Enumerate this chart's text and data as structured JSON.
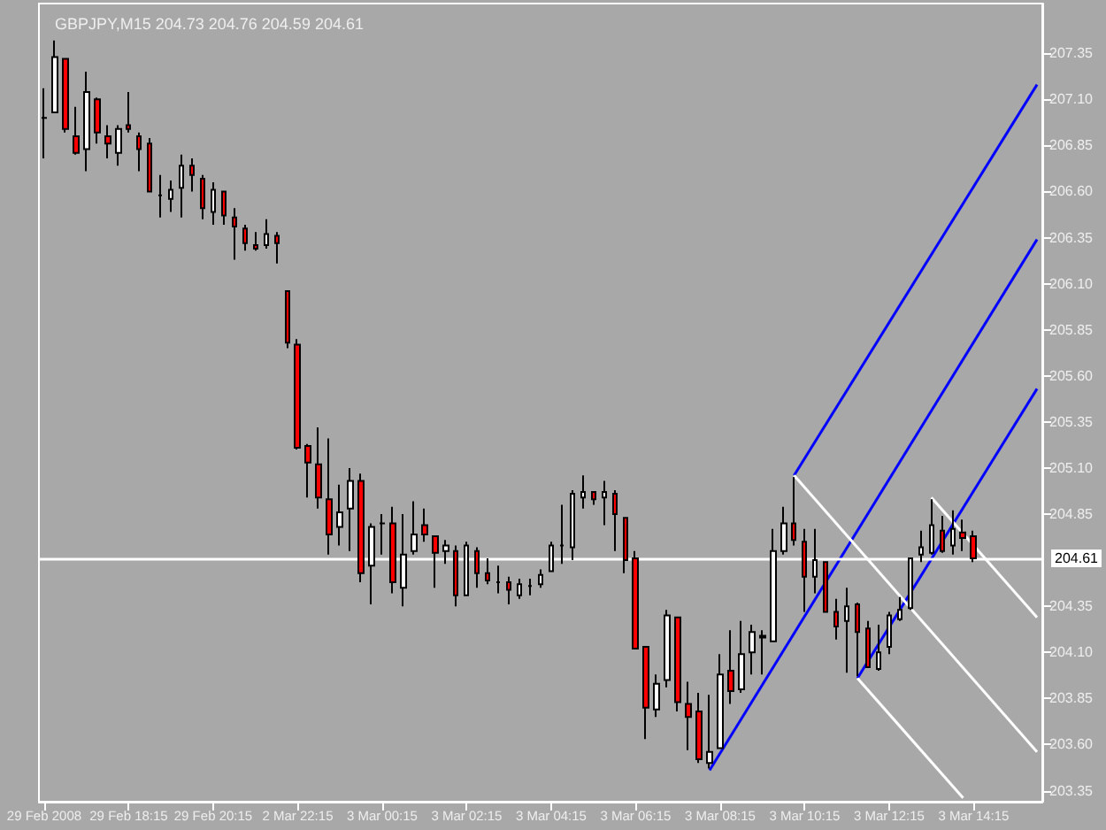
{
  "chart_data": {
    "type": "candlestick",
    "title": "GBPJPY,M15 204.73 204.76 204.59 204.61",
    "categories": [
      "29 Feb 2008",
      null,
      null,
      null,
      null,
      null,
      null,
      null,
      "29 Feb 18:15",
      null,
      null,
      null,
      null,
      null,
      null,
      null,
      "29 Feb 20:15",
      null,
      null,
      null,
      null,
      null,
      null,
      null,
      "2 Mar 22:15",
      null,
      null,
      null,
      null,
      null,
      null,
      null,
      "3 Mar 00:15",
      null,
      null,
      null,
      null,
      null,
      null,
      null,
      "3 Mar 02:15",
      null,
      null,
      null,
      null,
      null,
      null,
      null,
      "3 Mar 04:15",
      null,
      null,
      null,
      null,
      null,
      null,
      null,
      "3 Mar 06:15",
      null,
      null,
      null,
      null,
      null,
      null,
      null,
      "3 Mar 08:15",
      null,
      null,
      null,
      null,
      null,
      null,
      null,
      "3 Mar 10:15",
      null,
      null,
      null,
      null,
      null,
      null,
      null,
      "3 Mar 12:15",
      null,
      null,
      null,
      null,
      null,
      null,
      null,
      "3 Mar 14:15",
      null,
      null,
      null,
      null,
      null,
      null
    ],
    "ylim": [
      203.29,
      207.62
    ],
    "yticks": [
      203.35,
      {
        "value": 203.6,
        "label": "203.60"
      },
      203.85,
      {
        "value": 204.1,
        "label": "204.10"
      },
      204.35,
      204.85,
      {
        "value": 205.1,
        "label": "205.10"
      },
      205.35,
      {
        "value": 205.6,
        "label": "205.60"
      },
      205.85,
      {
        "value": 206.1,
        "label": "206.10"
      },
      206.35,
      {
        "value": 206.6,
        "label": "206.60"
      },
      206.85,
      {
        "value": 207.1,
        "label": "207.10"
      },
      207.35
    ],
    "grid": false,
    "ref_lines": [
      {
        "axis": "y",
        "value": 204.61,
        "label": "204.61",
        "color": "#ffffff"
      }
    ],
    "series": [
      {
        "ohlc": [
          [
            207.0,
            207.16,
            206.78,
            207.0
          ],
          [
            207.03,
            207.42,
            207.03,
            207.33
          ],
          [
            207.32,
            207.32,
            206.92,
            206.94
          ],
          [
            206.9,
            207.06,
            206.8,
            206.81
          ],
          [
            206.83,
            207.25,
            206.71,
            207.14
          ],
          [
            207.1,
            207.11,
            206.86,
            206.92
          ],
          [
            206.9,
            206.96,
            206.78,
            206.86
          ],
          [
            206.81,
            206.96,
            206.74,
            206.94
          ],
          [
            206.96,
            207.14,
            206.92,
            206.94
          ],
          [
            206.9,
            206.92,
            206.71,
            206.83
          ],
          [
            206.86,
            206.89,
            206.6,
            206.6
          ],
          [
            206.58,
            206.69,
            206.46,
            206.58
          ],
          [
            206.56,
            206.66,
            206.49,
            206.61
          ],
          [
            206.62,
            206.8,
            206.46,
            206.74
          ],
          [
            206.74,
            206.78,
            206.6,
            206.69
          ],
          [
            206.67,
            206.69,
            206.45,
            206.51
          ],
          [
            206.49,
            206.65,
            206.42,
            206.61
          ],
          [
            206.6,
            206.6,
            206.42,
            206.47
          ],
          [
            206.46,
            206.51,
            206.23,
            206.41
          ],
          [
            206.4,
            206.42,
            206.28,
            206.32
          ],
          [
            206.31,
            206.38,
            206.28,
            206.29
          ],
          [
            206.31,
            206.45,
            206.29,
            206.37
          ],
          [
            206.36,
            206.38,
            206.21,
            206.32
          ],
          [
            206.06,
            206.06,
            205.75,
            205.78
          ],
          [
            205.77,
            205.8,
            205.2,
            205.21
          ],
          [
            205.22,
            205.23,
            204.94,
            205.13
          ],
          [
            205.12,
            205.32,
            204.88,
            204.94
          ],
          [
            204.93,
            205.26,
            204.63,
            204.74
          ],
          [
            204.78,
            205.01,
            204.68,
            204.86
          ],
          [
            204.88,
            205.1,
            204.65,
            205.03
          ],
          [
            205.03,
            205.07,
            204.48,
            204.53
          ],
          [
            204.57,
            204.8,
            204.36,
            204.78
          ],
          [
            204.8,
            204.85,
            204.63,
            204.8
          ],
          [
            204.8,
            204.89,
            204.42,
            204.48
          ],
          [
            204.45,
            204.85,
            204.35,
            204.63
          ],
          [
            204.65,
            204.92,
            204.63,
            204.74
          ],
          [
            204.79,
            204.88,
            204.7,
            204.74
          ],
          [
            204.73,
            204.73,
            204.45,
            204.64
          ],
          [
            204.65,
            204.71,
            204.58,
            204.68
          ],
          [
            204.65,
            204.68,
            204.35,
            204.41
          ],
          [
            204.41,
            204.7,
            204.41,
            204.68
          ],
          [
            204.65,
            204.67,
            204.45,
            204.53
          ],
          [
            204.53,
            204.61,
            204.47,
            204.49
          ],
          [
            204.48,
            204.57,
            204.42,
            204.48
          ],
          [
            204.48,
            204.51,
            204.36,
            204.44
          ],
          [
            204.41,
            204.5,
            204.39,
            204.47
          ],
          [
            204.46,
            204.5,
            204.41,
            204.46
          ],
          [
            204.47,
            204.55,
            204.45,
            204.52
          ],
          [
            204.54,
            204.7,
            204.54,
            204.68
          ],
          [
            204.68,
            204.9,
            204.58,
            204.68
          ],
          [
            204.67,
            204.98,
            204.6,
            204.96
          ],
          [
            204.94,
            205.06,
            204.88,
            204.97
          ],
          [
            204.97,
            204.97,
            204.9,
            204.93
          ],
          [
            204.94,
            205.03,
            204.79,
            204.97
          ],
          [
            204.96,
            204.98,
            204.65,
            204.85
          ],
          [
            204.83,
            204.83,
            204.53,
            204.6
          ],
          [
            204.61,
            204.65,
            204.12,
            204.12
          ],
          [
            204.13,
            204.13,
            203.63,
            203.8
          ],
          [
            203.79,
            203.98,
            203.75,
            203.93
          ],
          [
            203.95,
            204.33,
            203.91,
            204.3
          ],
          [
            204.29,
            204.29,
            203.78,
            203.83
          ],
          [
            203.82,
            203.94,
            203.57,
            203.75
          ],
          [
            203.78,
            203.88,
            203.5,
            203.52
          ],
          [
            203.5,
            203.87,
            203.47,
            203.56
          ],
          [
            203.58,
            204.09,
            203.58,
            203.98
          ],
          [
            204.0,
            204.22,
            203.82,
            203.89
          ],
          [
            203.9,
            204.27,
            203.88,
            204.09
          ],
          [
            204.1,
            204.25,
            203.98,
            204.21
          ],
          [
            204.19,
            204.22,
            203.98,
            204.18
          ],
          [
            204.16,
            204.77,
            204.16,
            204.65
          ],
          [
            204.65,
            204.89,
            204.63,
            204.8
          ],
          [
            204.8,
            205.05,
            204.68,
            204.71
          ],
          [
            204.7,
            204.77,
            204.32,
            204.51
          ],
          [
            204.51,
            204.77,
            204.42,
            204.6
          ],
          [
            204.59,
            204.59,
            204.32,
            204.32
          ],
          [
            204.32,
            204.39,
            204.17,
            204.24
          ],
          [
            204.27,
            204.45,
            203.99,
            204.35
          ],
          [
            204.36,
            204.37,
            203.97,
            204.21
          ],
          [
            204.23,
            204.27,
            204.02,
            204.02
          ],
          [
            204.01,
            204.25,
            204.0,
            204.1
          ],
          [
            204.13,
            204.32,
            204.09,
            204.3
          ],
          [
            204.28,
            204.4,
            204.27,
            204.33
          ],
          [
            204.34,
            204.61,
            204.33,
            204.61
          ],
          [
            204.63,
            204.76,
            204.59,
            204.67
          ],
          [
            204.64,
            204.93,
            204.63,
            204.79
          ],
          [
            204.76,
            204.84,
            204.64,
            204.65
          ],
          [
            204.68,
            204.87,
            204.63,
            204.77
          ],
          [
            204.75,
            204.82,
            204.65,
            204.72
          ],
          [
            204.73,
            204.76,
            204.59,
            204.61
          ],
          null,
          null,
          null,
          null,
          null,
          null
        ],
        "colors": [
          "#000000",
          "#ffffff",
          "#ff0000",
          "#ff0000",
          "#ffffff",
          "#ff0000",
          "#ff0000",
          "#ffffff",
          "#ff0000",
          "#ff0000",
          "#ff0000",
          "#000000",
          "#ffffff",
          "#ffffff",
          "#ff0000",
          "#ff0000",
          "#ffffff",
          "#ff0000",
          "#ff0000",
          "#ff0000",
          "#ff0000",
          "#ffffff",
          "#ff0000",
          "#ff0000",
          "#ff0000",
          "#ff0000",
          "#ff0000",
          "#ff0000",
          "#ffffff",
          "#ffffff",
          "#ff0000",
          "#ffffff",
          "#000000",
          "#ff0000",
          "#ffffff",
          "#ffffff",
          "#ff0000",
          "#ff0000",
          "#ffffff",
          "#ff0000",
          "#ffffff",
          "#ff0000",
          "#ff0000",
          "#000000",
          "#ff0000",
          "#ffffff",
          "#000000",
          "#ffffff",
          "#ffffff",
          "#000000",
          "#ffffff",
          "#ffffff",
          "#ff0000",
          "#ffffff",
          "#ff0000",
          "#ff0000",
          "#ff0000",
          "#ff0000",
          "#ffffff",
          "#ffffff",
          "#ff0000",
          "#ff0000",
          "#ff0000",
          "#ffffff",
          "#ffffff",
          "#ff0000",
          "#ffffff",
          "#ffffff",
          "#ff0000",
          "#ffffff",
          "#ffffff",
          "#ff0000",
          "#ff0000",
          "#ffffff",
          "#ff0000",
          "#ff0000",
          "#ffffff",
          "#ff0000",
          "#ff0000",
          "#ffffff",
          "#ffffff",
          "#ffffff",
          "#ffffff",
          "#ffffff",
          "#ffffff",
          "#ff0000",
          "#ffffff",
          "#ff0000",
          "#ff0000",
          null,
          null,
          null,
          null,
          null,
          null
        ]
      },
      {
        "type": "line",
        "color": "#0000ff",
        "values": [
          null,
          null,
          null,
          null,
          null,
          null,
          null,
          null,
          null,
          null,
          null,
          null,
          null,
          null,
          null,
          null,
          null,
          null,
          null,
          null,
          null,
          null,
          null,
          null,
          null,
          null,
          null,
          null,
          null,
          null,
          null,
          null,
          null,
          null,
          null,
          null,
          null,
          null,
          null,
          null,
          null,
          null,
          null,
          null,
          null,
          null,
          null,
          null,
          null,
          null,
          null,
          null,
          null,
          null,
          null,
          null,
          null,
          null,
          null,
          null,
          null,
          null,
          null,
          null,
          null,
          null,
          null,
          null,
          null,
          null,
          null,
          205.06,
          null,
          null,
          null,
          null,
          null,
          null,
          null,
          null,
          null,
          null,
          null,
          null,
          null,
          null,
          null,
          null,
          null,
          null,
          null,
          null,
          null,
          null,
          207.18
        ]
      },
      {
        "type": "line",
        "color": "#0000ff",
        "values": [
          null,
          null,
          null,
          null,
          null,
          null,
          null,
          null,
          null,
          null,
          null,
          null,
          null,
          null,
          null,
          null,
          null,
          null,
          null,
          null,
          null,
          null,
          null,
          null,
          null,
          null,
          null,
          null,
          null,
          null,
          null,
          null,
          null,
          null,
          null,
          null,
          null,
          null,
          null,
          null,
          null,
          null,
          null,
          null,
          null,
          null,
          null,
          null,
          null,
          null,
          null,
          null,
          null,
          null,
          null,
          null,
          null,
          null,
          null,
          null,
          null,
          null,
          null,
          203.46,
          null,
          null,
          null,
          null,
          null,
          null,
          null,
          null,
          null,
          null,
          null,
          null,
          null,
          null,
          null,
          null,
          null,
          null,
          null,
          null,
          null,
          null,
          null,
          null,
          null,
          null,
          null,
          null,
          null,
          null,
          206.34
        ]
      },
      {
        "type": "line",
        "color": "#0000ff",
        "values": [
          null,
          null,
          null,
          null,
          null,
          null,
          null,
          null,
          null,
          null,
          null,
          null,
          null,
          null,
          null,
          null,
          null,
          null,
          null,
          null,
          null,
          null,
          null,
          null,
          null,
          null,
          null,
          null,
          null,
          null,
          null,
          null,
          null,
          null,
          null,
          null,
          null,
          null,
          null,
          null,
          null,
          null,
          null,
          null,
          null,
          null,
          null,
          null,
          null,
          null,
          null,
          null,
          null,
          null,
          null,
          null,
          null,
          null,
          null,
          null,
          null,
          null,
          null,
          null,
          null,
          null,
          null,
          null,
          null,
          null,
          null,
          null,
          null,
          null,
          null,
          null,
          null,
          203.96,
          null,
          null,
          null,
          null,
          null,
          null,
          null,
          null,
          null,
          null,
          null,
          null,
          null,
          null,
          null,
          null,
          205.53
        ]
      },
      {
        "type": "line",
        "color": "#ffffff",
        "values": [
          null,
          null,
          null,
          null,
          null,
          null,
          null,
          null,
          null,
          null,
          null,
          null,
          null,
          null,
          null,
          null,
          null,
          null,
          null,
          null,
          null,
          null,
          null,
          null,
          null,
          null,
          null,
          null,
          null,
          null,
          null,
          null,
          null,
          null,
          null,
          null,
          null,
          null,
          null,
          null,
          null,
          null,
          null,
          null,
          null,
          null,
          null,
          null,
          null,
          null,
          null,
          null,
          null,
          null,
          null,
          null,
          null,
          null,
          null,
          null,
          null,
          null,
          null,
          null,
          null,
          null,
          null,
          null,
          null,
          null,
          null,
          205.06,
          null,
          null,
          null,
          null,
          null,
          null,
          null,
          null,
          null,
          null,
          null,
          null,
          null,
          null,
          null,
          null,
          null,
          null,
          null,
          null,
          null,
          null,
          203.56
        ]
      },
      {
        "type": "line",
        "color": "#ffffff",
        "values": [
          null,
          null,
          null,
          null,
          null,
          null,
          null,
          null,
          null,
          null,
          null,
          null,
          null,
          null,
          null,
          null,
          null,
          null,
          null,
          null,
          null,
          null,
          null,
          null,
          null,
          null,
          null,
          null,
          null,
          null,
          null,
          null,
          null,
          null,
          null,
          null,
          null,
          null,
          null,
          null,
          null,
          null,
          null,
          null,
          null,
          null,
          null,
          null,
          null,
          null,
          null,
          null,
          null,
          null,
          null,
          null,
          null,
          null,
          null,
          null,
          null,
          null,
          null,
          null,
          null,
          null,
          null,
          null,
          null,
          null,
          null,
          null,
          null,
          null,
          null,
          null,
          null,
          null,
          null,
          null,
          null,
          null,
          null,
          null,
          204.94,
          null,
          null,
          null,
          null,
          null,
          null,
          null,
          null,
          null,
          204.29
        ]
      },
      {
        "type": "line",
        "color": "#ffffff",
        "values": [
          null,
          null,
          null,
          null,
          null,
          null,
          null,
          null,
          null,
          null,
          null,
          null,
          null,
          null,
          null,
          null,
          null,
          null,
          null,
          null,
          null,
          null,
          null,
          null,
          null,
          null,
          null,
          null,
          null,
          null,
          null,
          null,
          null,
          null,
          null,
          null,
          null,
          null,
          null,
          null,
          null,
          null,
          null,
          null,
          null,
          null,
          null,
          null,
          null,
          null,
          null,
          null,
          null,
          null,
          null,
          null,
          null,
          null,
          null,
          null,
          null,
          null,
          null,
          null,
          null,
          null,
          null,
          null,
          null,
          null,
          null,
          null,
          null,
          null,
          null,
          null,
          null,
          203.96,
          null,
          null,
          null,
          null,
          null,
          null,
          null,
          null,
          null,
          203.31,
          null,
          null,
          null,
          null,
          null,
          null,
          null
        ]
      }
    ]
  }
}
